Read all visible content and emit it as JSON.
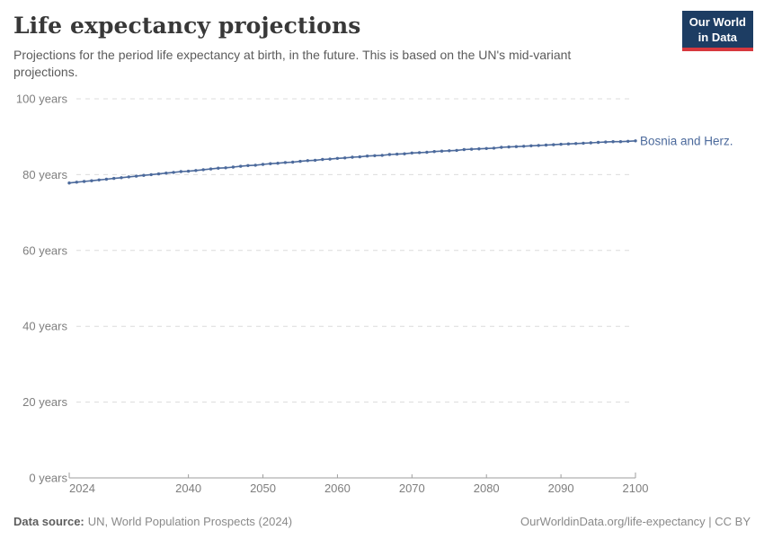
{
  "header": {
    "title": "Life expectancy projections",
    "subtitle": "Projections for the period life expectancy at birth, in the future. This is based on the UN's mid-variant projections."
  },
  "logo": {
    "line1": "Our World",
    "line2": "in Data",
    "bg_color": "#1d3d63",
    "stripe_color": "#d7383e"
  },
  "footer": {
    "source_label": "Data source:",
    "source_text": "UN, World Population Prospects (2024)",
    "right_text": "OurWorldinData.org/life-expectancy | CC BY"
  },
  "chart_data": {
    "type": "line",
    "title": "Life expectancy projections",
    "xlabel": "",
    "ylabel": "",
    "xlim": [
      2024,
      2100
    ],
    "ylim": [
      0,
      100
    ],
    "grid": "horizontal-dashed",
    "legend_position": "end-of-line-label",
    "line_color": "#4c6a9c",
    "grid_color": "#dcdcdc",
    "axis_color": "#9e9e9e",
    "marker": "dot-every-year",
    "y_ticks": [
      {
        "v": 0,
        "label": "0 years"
      },
      {
        "v": 20,
        "label": "20 years"
      },
      {
        "v": 40,
        "label": "40 years"
      },
      {
        "v": 60,
        "label": "60 years"
      },
      {
        "v": 80,
        "label": "80 years"
      },
      {
        "v": 100,
        "label": "100 years"
      }
    ],
    "x_ticks": [
      {
        "v": 2024,
        "label": "2024",
        "align": "start"
      },
      {
        "v": 2040,
        "label": "2040"
      },
      {
        "v": 2050,
        "label": "2050"
      },
      {
        "v": 2060,
        "label": "2060"
      },
      {
        "v": 2070,
        "label": "2070"
      },
      {
        "v": 2080,
        "label": "2080"
      },
      {
        "v": 2090,
        "label": "2090"
      },
      {
        "v": 2100,
        "label": "2100"
      }
    ],
    "x": [
      2024,
      2025,
      2026,
      2027,
      2028,
      2029,
      2030,
      2031,
      2032,
      2033,
      2034,
      2035,
      2036,
      2037,
      2038,
      2039,
      2040,
      2041,
      2042,
      2043,
      2044,
      2045,
      2046,
      2047,
      2048,
      2049,
      2050,
      2051,
      2052,
      2053,
      2054,
      2055,
      2056,
      2057,
      2058,
      2059,
      2060,
      2061,
      2062,
      2063,
      2064,
      2065,
      2066,
      2067,
      2068,
      2069,
      2070,
      2071,
      2072,
      2073,
      2074,
      2075,
      2076,
      2077,
      2078,
      2079,
      2080,
      2081,
      2082,
      2083,
      2084,
      2085,
      2086,
      2087,
      2088,
      2089,
      2090,
      2091,
      2092,
      2093,
      2094,
      2095,
      2096,
      2097,
      2098,
      2099,
      2100
    ],
    "series": [
      {
        "name": "Bosnia and Herz.",
        "values": [
          77.8,
          78.0,
          78.2,
          78.4,
          78.6,
          78.8,
          79.0,
          79.2,
          79.4,
          79.6,
          79.8,
          80.0,
          80.2,
          80.4,
          80.6,
          80.8,
          80.9,
          81.1,
          81.3,
          81.5,
          81.7,
          81.8,
          82.0,
          82.2,
          82.4,
          82.5,
          82.7,
          82.9,
          83.0,
          83.2,
          83.3,
          83.5,
          83.7,
          83.8,
          84.0,
          84.1,
          84.3,
          84.4,
          84.6,
          84.7,
          84.9,
          85.0,
          85.1,
          85.3,
          85.4,
          85.5,
          85.7,
          85.8,
          85.9,
          86.1,
          86.2,
          86.3,
          86.4,
          86.6,
          86.7,
          86.8,
          86.9,
          87.0,
          87.2,
          87.3,
          87.4,
          87.5,
          87.6,
          87.7,
          87.8,
          87.9,
          88.0,
          88.1,
          88.2,
          88.3,
          88.4,
          88.5,
          88.6,
          88.7,
          88.7,
          88.8,
          88.9
        ]
      }
    ]
  }
}
